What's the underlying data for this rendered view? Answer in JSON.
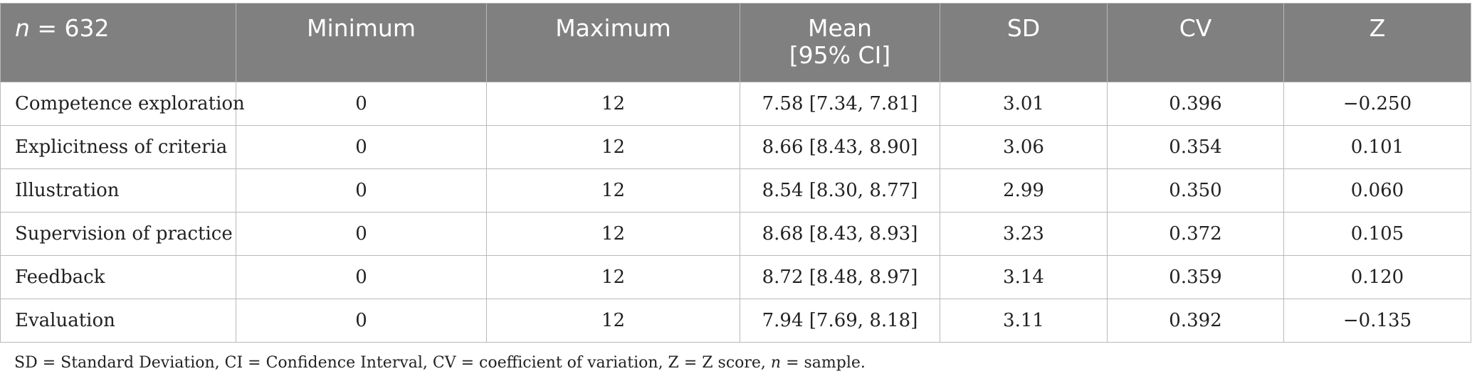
{
  "table": {
    "header": {
      "n_symbol": "n",
      "n_value": " = 632",
      "minimum": "Minimum",
      "maximum": "Maximum",
      "mean_line1": "Mean",
      "mean_line2": "[95% CI]",
      "sd": "SD",
      "cv": "CV",
      "z": "Z"
    },
    "rows": [
      {
        "label": "Competence exploration",
        "min": "0",
        "max": "12",
        "mean_ci": "7.58 [7.34, 7.81]",
        "sd": "3.01",
        "cv": "0.396",
        "z": "−0.250"
      },
      {
        "label": "Explicitness of criteria",
        "min": "0",
        "max": "12",
        "mean_ci": "8.66 [8.43, 8.90]",
        "sd": "3.06",
        "cv": "0.354",
        "z": "0.101"
      },
      {
        "label": "Illustration",
        "min": "0",
        "max": "12",
        "mean_ci": "8.54 [8.30, 8.77]",
        "sd": "2.99",
        "cv": "0.350",
        "z": "0.060"
      },
      {
        "label": "Supervision of practice",
        "min": "0",
        "max": "12",
        "mean_ci": "8.68 [8.43, 8.93]",
        "sd": "3.23",
        "cv": "0.372",
        "z": "0.105"
      },
      {
        "label": "Feedback",
        "min": "0",
        "max": "12",
        "mean_ci": "8.72 [8.48, 8.97]",
        "sd": "3.14",
        "cv": "0.359",
        "z": "0.120"
      },
      {
        "label": "Evaluation",
        "min": "0",
        "max": "12",
        "mean_ci": "7.94 [7.69, 8.18]",
        "sd": "3.11",
        "cv": "0.392",
        "z": "−0.135"
      }
    ]
  },
  "footnote": {
    "text_main": "SD = Standard Deviation, CI = Confidence Interval, CV = coefficient of variation, Z = Z score, ",
    "n_symbol": "n",
    "text_end": " = sample."
  }
}
